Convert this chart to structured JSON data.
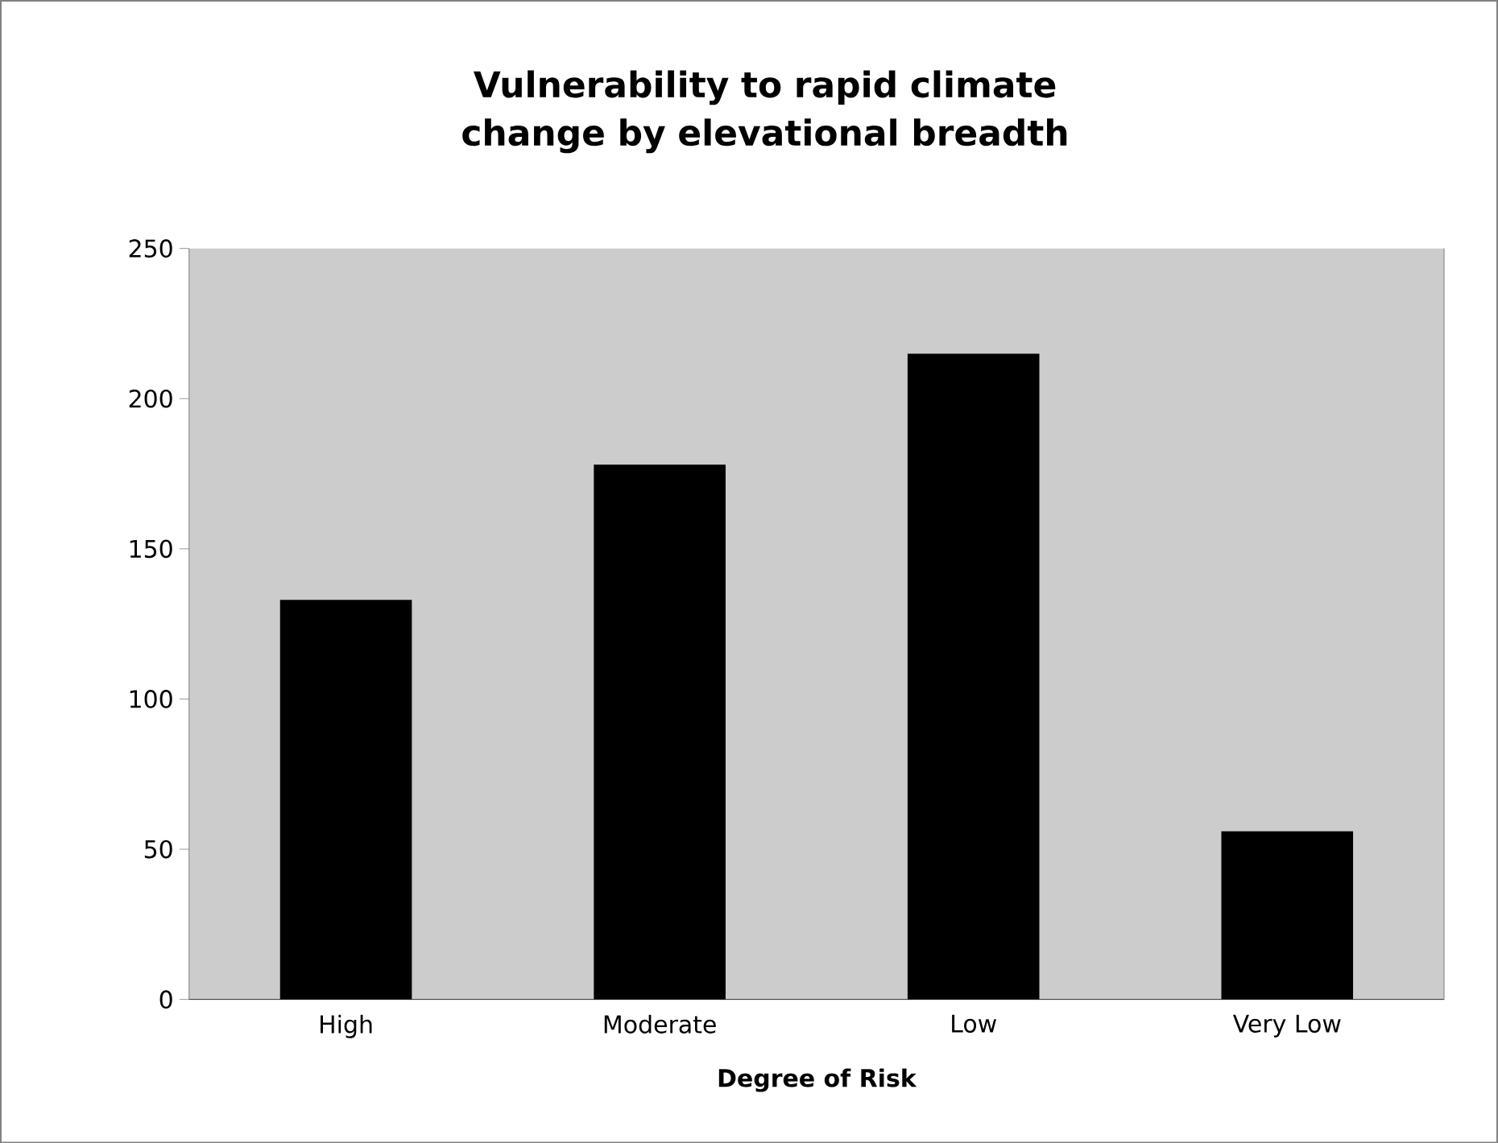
{
  "chart_data": {
    "type": "bar",
    "title": "Vulnerability to rapid climate change by elevational breadth",
    "xlabel": "Degree of Risk",
    "categories": [
      "High",
      "Moderate",
      "Low",
      "Very Low"
    ],
    "values": [
      133,
      178,
      215,
      56
    ],
    "color": "#000000",
    "ylim": [
      0,
      250
    ],
    "yticks": [
      0,
      50,
      100,
      150,
      200,
      250
    ],
    "grid": false
  }
}
